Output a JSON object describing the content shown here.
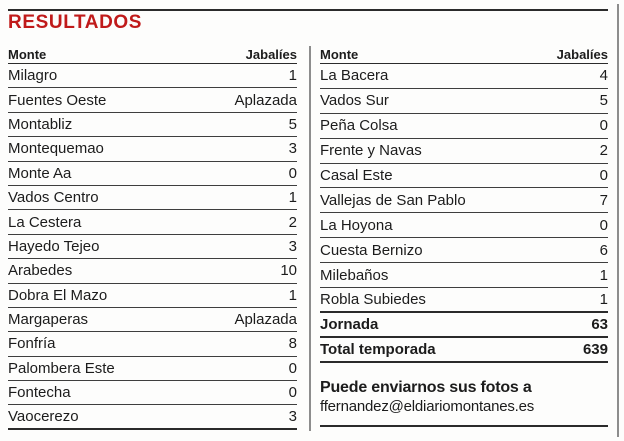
{
  "title": "RESULTADOS",
  "left_table": {
    "header": {
      "monte": "Monte",
      "jabalies": "Jabalíes"
    },
    "rows": [
      {
        "monte": "Milagro",
        "jabalies": "1"
      },
      {
        "monte": "Fuentes Oeste",
        "jabalies": "Aplazada"
      },
      {
        "monte": "Montabliz",
        "jabalies": "5"
      },
      {
        "monte": "Montequemao",
        "jabalies": "3"
      },
      {
        "monte": "Monte Aa",
        "jabalies": "0"
      },
      {
        "monte": "Vados Centro",
        "jabalies": "1"
      },
      {
        "monte": "La Cestera",
        "jabalies": "2"
      },
      {
        "monte": "Hayedo Tejeo",
        "jabalies": "3"
      },
      {
        "monte": "Arabedes",
        "jabalies": "10"
      },
      {
        "monte": "Dobra El Mazo",
        "jabalies": "1"
      },
      {
        "monte": "Margaperas",
        "jabalies": "Aplazada"
      },
      {
        "monte": "Fonfría",
        "jabalies": "8"
      },
      {
        "monte": "Palombera Este",
        "jabalies": "0"
      },
      {
        "monte": "Fontecha",
        "jabalies": "0"
      },
      {
        "monte": "Vaocerezo",
        "jabalies": "3"
      }
    ]
  },
  "right_table": {
    "header": {
      "monte": "Monte",
      "jabalies": "Jabalíes"
    },
    "rows": [
      {
        "monte": "La Bacera",
        "jabalies": "4"
      },
      {
        "monte": "Vados Sur",
        "jabalies": "5"
      },
      {
        "monte": "Peña Colsa",
        "jabalies": "0"
      },
      {
        "monte": "Frente y Navas",
        "jabalies": "2"
      },
      {
        "monte": "Casal Este",
        "jabalies": "0"
      },
      {
        "monte": "Vallejas de San Pablo",
        "jabalies": "7"
      },
      {
        "monte": "La Hoyona",
        "jabalies": "0"
      },
      {
        "monte": "Cuesta Bernizo",
        "jabalies": "6"
      },
      {
        "monte": "Milebaños",
        "jabalies": "1"
      },
      {
        "monte": "Robla Subiedes",
        "jabalies": "1"
      }
    ],
    "totals": [
      {
        "label": "Jornada",
        "value": "63"
      },
      {
        "label": "Total temporada",
        "value": "639"
      }
    ]
  },
  "contact": {
    "line1": "Puede enviarnos sus fotos a",
    "line2": "ffernandez@eldiariomontanes.es"
  },
  "colors": {
    "title_red": "#c01a1a",
    "text": "#1c1c1c",
    "rule_dark": "#2b2b2b",
    "rule_row": "#3e3e3e",
    "divider_gray": "#8d8d8d",
    "bg": "#fdfdfc"
  }
}
